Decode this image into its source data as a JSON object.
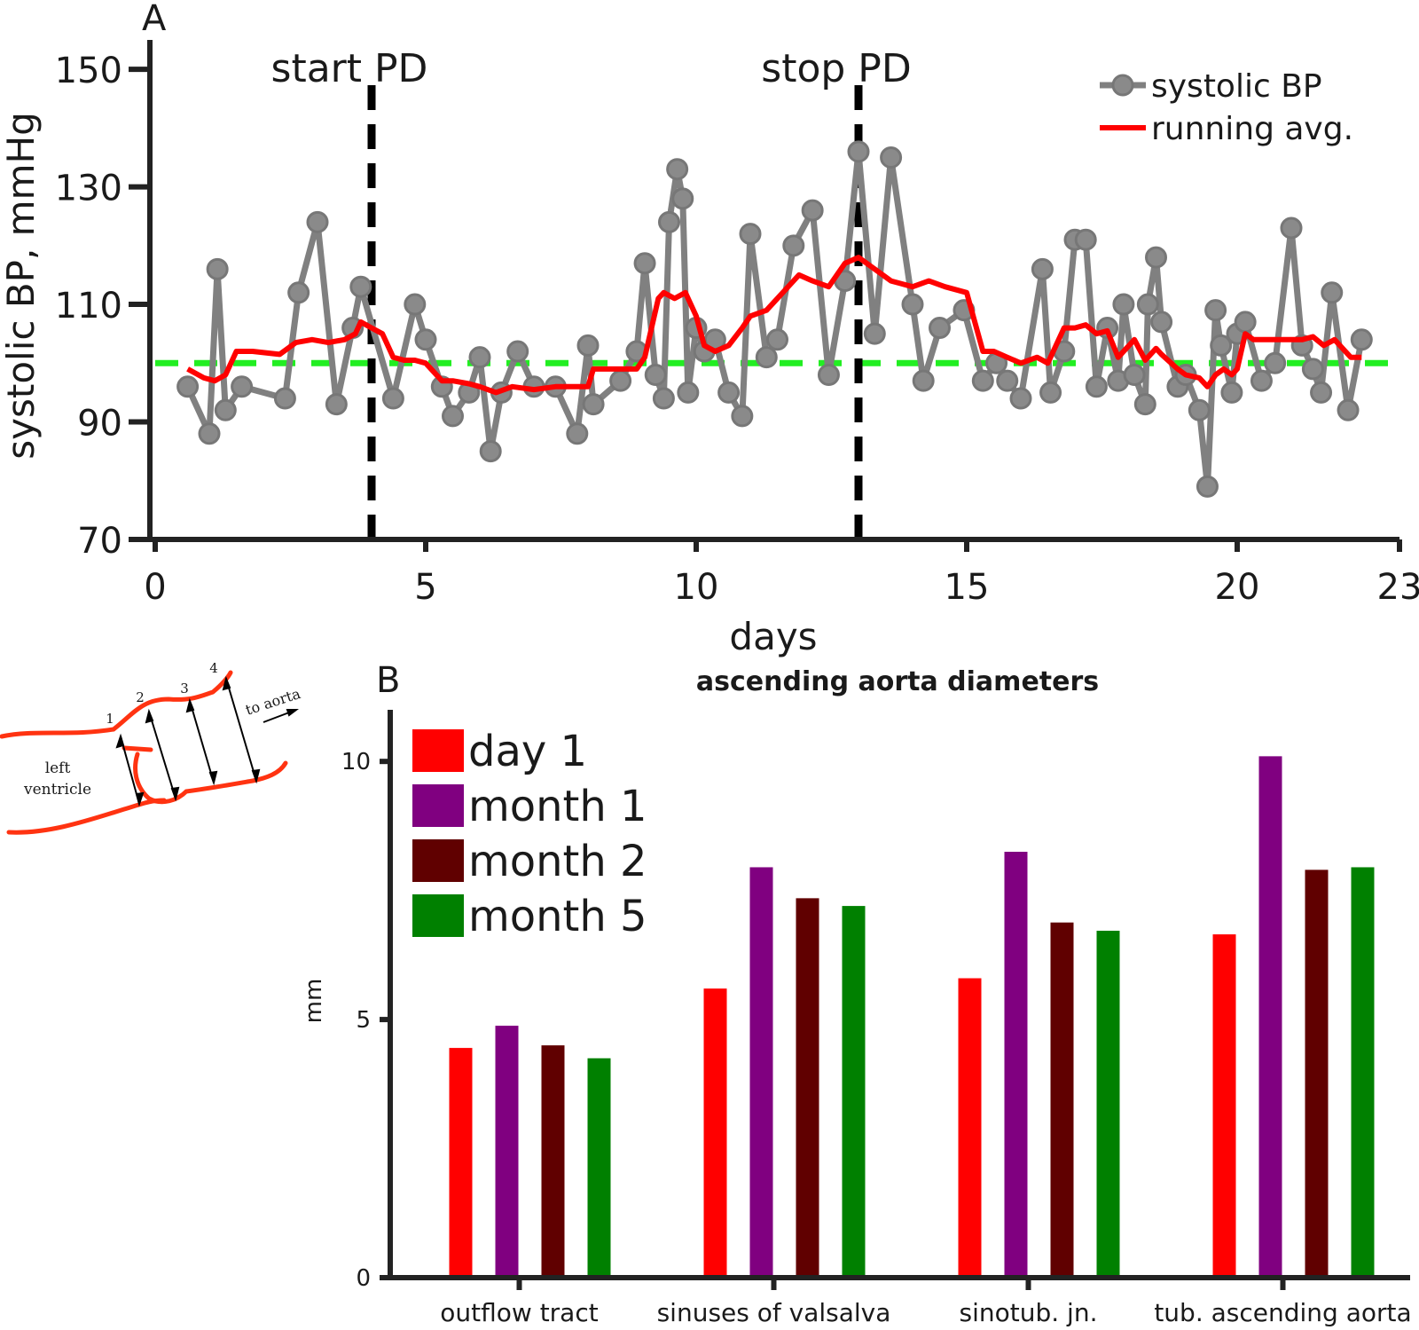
{
  "chart_data": [
    {
      "type": "line",
      "panel_label": "A",
      "xlabel": "days",
      "ylabel": "systolic BP, mmHg",
      "xlim": [
        0,
        23
      ],
      "ylim": [
        70,
        155
      ],
      "xticks": [
        0,
        5,
        10,
        15,
        20,
        23
      ],
      "xtick_labels": [
        "0",
        "5",
        "10",
        "15",
        "20",
        "23"
      ],
      "yticks": [
        70,
        90,
        110,
        130,
        150
      ],
      "ytick_labels": [
        "70",
        "90",
        "110",
        "130",
        "150"
      ],
      "legend_position": "top-right",
      "annotations": [
        {
          "text": "start PD",
          "x": 4
        },
        {
          "text": "stop PD",
          "x": 13
        }
      ],
      "reference_line": {
        "y": 100,
        "style": "dashed",
        "color": "#22ee22"
      },
      "series": [
        {
          "name": "systolic BP",
          "color": "#808080",
          "marker": "circle",
          "x": [
            0.6,
            1.0,
            1.15,
            1.3,
            1.6,
            2.4,
            2.65,
            3.0,
            3.35,
            3.65,
            3.8,
            4.4,
            4.8,
            5.0,
            5.3,
            5.5,
            5.8,
            6.0,
            6.2,
            6.4,
            6.7,
            7.0,
            7.4,
            7.8,
            8.0,
            8.1,
            8.6,
            8.9,
            9.05,
            9.25,
            9.4,
            9.5,
            9.65,
            9.75,
            9.85,
            10.0,
            10.15,
            10.35,
            10.6,
            10.85,
            11.0,
            11.3,
            11.5,
            11.8,
            12.15,
            12.45,
            12.75,
            13.0,
            13.3,
            13.6,
            14.0,
            14.2,
            14.5,
            14.95,
            15.3,
            15.55,
            15.75,
            16.0,
            16.4,
            16.55,
            16.8,
            17.0,
            17.2,
            17.4,
            17.6,
            17.8,
            17.9,
            18.1,
            18.3,
            18.35,
            18.5,
            18.6,
            18.9,
            19.05,
            19.3,
            19.45,
            19.6,
            19.7,
            19.9,
            20.0,
            20.15,
            20.45,
            20.7,
            21.0,
            21.2,
            21.4,
            21.55,
            21.75,
            22.05,
            22.3
          ],
          "values": [
            96,
            88,
            116,
            92,
            96,
            94,
            112,
            124,
            93,
            106,
            113,
            94,
            110,
            104,
            96,
            91,
            95,
            101,
            85,
            95,
            102,
            96,
            96,
            88,
            103,
            93,
            97,
            102,
            117,
            98,
            94,
            124,
            133,
            128,
            95,
            106,
            102,
            104,
            95,
            91,
            122,
            101,
            104,
            120,
            126,
            98,
            114,
            136,
            105,
            135,
            110,
            97,
            106,
            109,
            97,
            100,
            97,
            94,
            116,
            95,
            102,
            121,
            121,
            96,
            106,
            97,
            110,
            98,
            93,
            110,
            118,
            107,
            96,
            98,
            92,
            79,
            109,
            103,
            95,
            105,
            107,
            97,
            100,
            123,
            103,
            99,
            95,
            112,
            92,
            104
          ]
        },
        {
          "name": "running avg.",
          "color": "#ff0000",
          "x": [
            0.6,
            0.9,
            1.1,
            1.3,
            1.5,
            1.8,
            2.3,
            2.6,
            2.9,
            3.2,
            3.5,
            3.7,
            3.8,
            4.0,
            4.2,
            4.4,
            4.6,
            4.8,
            5.0,
            5.3,
            5.5,
            5.8,
            6.0,
            6.3,
            6.6,
            7.0,
            7.4,
            7.8,
            8.0,
            8.1,
            8.6,
            8.9,
            9.05,
            9.3,
            9.4,
            9.6,
            9.8,
            10.0,
            10.15,
            10.35,
            10.6,
            10.85,
            11.0,
            11.3,
            11.6,
            11.9,
            12.15,
            12.45,
            12.75,
            13.0,
            13.3,
            13.6,
            14.0,
            14.3,
            14.6,
            15.0,
            15.3,
            15.5,
            15.75,
            16.0,
            16.3,
            16.5,
            16.8,
            17.0,
            17.2,
            17.4,
            17.6,
            17.8,
            18.1,
            18.3,
            18.5,
            18.6,
            18.9,
            19.05,
            19.3,
            19.45,
            19.6,
            19.75,
            19.9,
            20.0,
            20.15,
            20.3,
            20.7,
            21.0,
            21.2,
            21.4,
            21.6,
            21.8,
            22.1,
            22.3
          ],
          "values": [
            99,
            97.5,
            97,
            98,
            102,
            102,
            101.5,
            103.5,
            104,
            103.5,
            104,
            105,
            107,
            106,
            105,
            101,
            100.5,
            100.5,
            100,
            97,
            97,
            96.5,
            96,
            95,
            96,
            95.5,
            96,
            96,
            96,
            99,
            99,
            99,
            101,
            111,
            112,
            111,
            112,
            108,
            103,
            102,
            103,
            106,
            108,
            109,
            112,
            115,
            114,
            113,
            117,
            118,
            116,
            114,
            113,
            114,
            113,
            112,
            102,
            102,
            101,
            100,
            101,
            100,
            106,
            106,
            106.5,
            105,
            105.5,
            101,
            104,
            100.5,
            102.5,
            101.5,
            99,
            98,
            97.5,
            96,
            98,
            99,
            98,
            99,
            105,
            104,
            104,
            104,
            104,
            104.5,
            103,
            104,
            101,
            101
          ]
        }
      ]
    },
    {
      "type": "bar",
      "panel_label": "B",
      "title": "ascending aorta diameters",
      "xlabel": "",
      "ylabel": "mm",
      "ylim": [
        0,
        11
      ],
      "yticks": [
        0,
        5,
        10
      ],
      "ytick_labels": [
        "0",
        "5",
        "10"
      ],
      "legend_position": "top-left",
      "categories": [
        "outflow tract",
        "sinuses of valsalva",
        "sinotub. jn.",
        "tub. ascending aorta"
      ],
      "series": [
        {
          "name": "day 1",
          "color": "#ff0000",
          "values": [
            4.45,
            5.6,
            5.8,
            6.65
          ]
        },
        {
          "name": "month 1",
          "color": "#800080",
          "values": [
            4.88,
            7.95,
            8.25,
            10.1
          ]
        },
        {
          "name": "month 2",
          "color": "#600000",
          "values": [
            4.5,
            7.35,
            6.88,
            7.9
          ]
        },
        {
          "name": "month 5",
          "color": "#008000",
          "values": [
            4.25,
            7.2,
            6.72,
            7.95
          ]
        }
      ]
    }
  ],
  "schematic": {
    "labels": {
      "chamber": [
        "left",
        "ventricle"
      ],
      "numbers": [
        "1",
        "2",
        "3",
        "4"
      ],
      "direction": "to aorta"
    },
    "color": "#ff3311"
  }
}
